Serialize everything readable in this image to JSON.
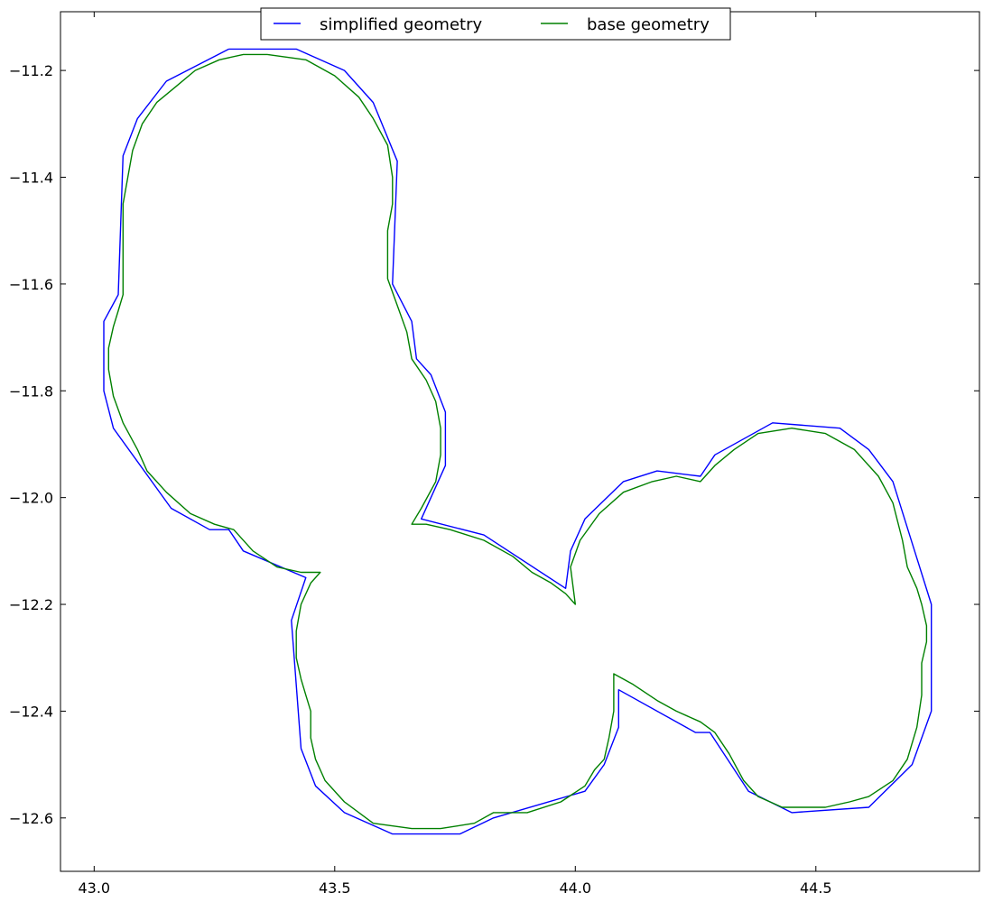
{
  "chart_data": {
    "type": "line",
    "title": "",
    "xlabel": "",
    "ylabel": "",
    "xlim": [
      42.93,
      44.84
    ],
    "ylim": [
      -12.7,
      -11.09
    ],
    "xticks": [
      43.0,
      43.5,
      44.0,
      44.5
    ],
    "xtick_labels": [
      "43.0",
      "43.5",
      "44.0",
      "44.5"
    ],
    "yticks": [
      -11.2,
      -11.4,
      -11.6,
      -11.8,
      -12.0,
      -12.2,
      -12.4,
      -12.6
    ],
    "ytick_labels": [
      "−11.2",
      "−11.4",
      "−11.6",
      "−11.8",
      "−12.0",
      "−12.2",
      "−12.4",
      "−12.6"
    ],
    "grid": false,
    "legend": {
      "placement": "top-center",
      "columns": 2
    },
    "series": [
      {
        "name": "simplified geometry",
        "color": "#0000ff",
        "points": [
          [
            43.28,
            -11.16
          ],
          [
            43.42,
            -11.16
          ],
          [
            43.52,
            -11.2
          ],
          [
            43.58,
            -11.26
          ],
          [
            43.63,
            -11.37
          ],
          [
            43.62,
            -11.6
          ],
          [
            43.66,
            -11.67
          ],
          [
            43.67,
            -11.74
          ],
          [
            43.7,
            -11.77
          ],
          [
            43.73,
            -11.84
          ],
          [
            43.73,
            -11.94
          ],
          [
            43.68,
            -12.04
          ],
          [
            43.81,
            -12.07
          ],
          [
            43.98,
            -12.17
          ],
          [
            43.99,
            -12.1
          ],
          [
            44.02,
            -12.04
          ],
          [
            44.1,
            -11.97
          ],
          [
            44.17,
            -11.95
          ],
          [
            44.26,
            -11.96
          ],
          [
            44.29,
            -11.92
          ],
          [
            44.41,
            -11.86
          ],
          [
            44.55,
            -11.87
          ],
          [
            44.61,
            -11.91
          ],
          [
            44.66,
            -11.97
          ],
          [
            44.74,
            -12.2
          ],
          [
            44.74,
            -12.4
          ],
          [
            44.7,
            -12.5
          ],
          [
            44.61,
            -12.58
          ],
          [
            44.45,
            -12.59
          ],
          [
            44.36,
            -12.55
          ],
          [
            44.28,
            -12.44
          ],
          [
            44.25,
            -12.44
          ],
          [
            44.09,
            -12.36
          ],
          [
            44.09,
            -12.43
          ],
          [
            44.06,
            -12.5
          ],
          [
            44.02,
            -12.55
          ],
          [
            43.83,
            -12.6
          ],
          [
            43.76,
            -12.63
          ],
          [
            43.62,
            -12.63
          ],
          [
            43.52,
            -12.59
          ],
          [
            43.46,
            -12.54
          ],
          [
            43.43,
            -12.47
          ],
          [
            43.41,
            -12.23
          ],
          [
            43.44,
            -12.15
          ],
          [
            43.31,
            -12.1
          ],
          [
            43.28,
            -12.06
          ],
          [
            43.24,
            -12.06
          ],
          [
            43.16,
            -12.02
          ],
          [
            43.04,
            -11.87
          ],
          [
            43.02,
            -11.8
          ],
          [
            43.02,
            -11.67
          ],
          [
            43.05,
            -11.62
          ],
          [
            43.06,
            -11.36
          ],
          [
            43.09,
            -11.29
          ],
          [
            43.15,
            -11.22
          ],
          [
            43.28,
            -11.16
          ]
        ]
      },
      {
        "name": "base geometry",
        "color": "#008000",
        "points": [
          [
            43.36,
            -11.17
          ],
          [
            43.44,
            -11.18
          ],
          [
            43.5,
            -11.21
          ],
          [
            43.55,
            -11.25
          ],
          [
            43.58,
            -11.29
          ],
          [
            43.61,
            -11.34
          ],
          [
            43.62,
            -11.4
          ],
          [
            43.62,
            -11.45
          ],
          [
            43.61,
            -11.5
          ],
          [
            43.61,
            -11.59
          ],
          [
            43.63,
            -11.64
          ],
          [
            43.65,
            -11.69
          ],
          [
            43.66,
            -11.74
          ],
          [
            43.69,
            -11.78
          ],
          [
            43.71,
            -11.82
          ],
          [
            43.72,
            -11.87
          ],
          [
            43.72,
            -11.92
          ],
          [
            43.71,
            -11.97
          ],
          [
            43.68,
            -12.02
          ],
          [
            43.66,
            -12.05
          ],
          [
            43.69,
            -12.05
          ],
          [
            43.74,
            -12.06
          ],
          [
            43.81,
            -12.08
          ],
          [
            43.87,
            -12.11
          ],
          [
            43.91,
            -12.14
          ],
          [
            43.95,
            -12.16
          ],
          [
            43.98,
            -12.18
          ],
          [
            44.0,
            -12.2
          ],
          [
            43.99,
            -12.13
          ],
          [
            44.01,
            -12.08
          ],
          [
            44.05,
            -12.03
          ],
          [
            44.1,
            -11.99
          ],
          [
            44.16,
            -11.97
          ],
          [
            44.21,
            -11.96
          ],
          [
            44.26,
            -11.97
          ],
          [
            44.29,
            -11.94
          ],
          [
            44.33,
            -11.91
          ],
          [
            44.38,
            -11.88
          ],
          [
            44.45,
            -11.87
          ],
          [
            44.52,
            -11.88
          ],
          [
            44.58,
            -11.91
          ],
          [
            44.63,
            -11.96
          ],
          [
            44.66,
            -12.01
          ],
          [
            44.68,
            -12.08
          ],
          [
            44.69,
            -12.13
          ],
          [
            44.71,
            -12.17
          ],
          [
            44.72,
            -12.2
          ],
          [
            44.73,
            -12.24
          ],
          [
            44.73,
            -12.27
          ],
          [
            44.72,
            -12.31
          ],
          [
            44.72,
            -12.37
          ],
          [
            44.71,
            -12.43
          ],
          [
            44.69,
            -12.49
          ],
          [
            44.66,
            -12.53
          ],
          [
            44.61,
            -12.56
          ],
          [
            44.57,
            -12.57
          ],
          [
            44.52,
            -12.58
          ],
          [
            44.48,
            -12.58
          ],
          [
            44.43,
            -12.58
          ],
          [
            44.38,
            -12.56
          ],
          [
            44.35,
            -12.53
          ],
          [
            44.32,
            -12.48
          ],
          [
            44.29,
            -12.44
          ],
          [
            44.26,
            -12.42
          ],
          [
            44.21,
            -12.4
          ],
          [
            44.17,
            -12.38
          ],
          [
            44.12,
            -12.35
          ],
          [
            44.1,
            -12.34
          ],
          [
            44.08,
            -12.33
          ],
          [
            44.08,
            -12.4
          ],
          [
            44.07,
            -12.45
          ],
          [
            44.06,
            -12.49
          ],
          [
            44.04,
            -12.51
          ],
          [
            44.02,
            -12.54
          ],
          [
            43.97,
            -12.57
          ],
          [
            43.9,
            -12.59
          ],
          [
            43.84,
            -12.59
          ],
          [
            43.83,
            -12.59
          ],
          [
            43.79,
            -12.61
          ],
          [
            43.72,
            -12.62
          ],
          [
            43.66,
            -12.62
          ],
          [
            43.58,
            -12.61
          ],
          [
            43.52,
            -12.57
          ],
          [
            43.48,
            -12.53
          ],
          [
            43.46,
            -12.49
          ],
          [
            43.45,
            -12.45
          ],
          [
            43.45,
            -12.4
          ],
          [
            43.44,
            -12.37
          ],
          [
            43.43,
            -12.34
          ],
          [
            43.42,
            -12.3
          ],
          [
            43.42,
            -12.25
          ],
          [
            43.43,
            -12.2
          ],
          [
            43.45,
            -12.16
          ],
          [
            43.47,
            -12.14
          ],
          [
            43.43,
            -12.14
          ],
          [
            43.38,
            -12.13
          ],
          [
            43.33,
            -12.1
          ],
          [
            43.29,
            -12.06
          ],
          [
            43.25,
            -12.05
          ],
          [
            43.2,
            -12.03
          ],
          [
            43.15,
            -11.99
          ],
          [
            43.11,
            -11.95
          ],
          [
            43.09,
            -11.91
          ],
          [
            43.06,
            -11.86
          ],
          [
            43.04,
            -11.81
          ],
          [
            43.03,
            -11.76
          ],
          [
            43.03,
            -11.72
          ],
          [
            43.04,
            -11.68
          ],
          [
            43.05,
            -11.65
          ],
          [
            43.06,
            -11.62
          ],
          [
            43.06,
            -11.56
          ],
          [
            43.06,
            -11.5
          ],
          [
            43.06,
            -11.45
          ],
          [
            43.07,
            -11.4
          ],
          [
            43.08,
            -11.35
          ],
          [
            43.1,
            -11.3
          ],
          [
            43.13,
            -11.26
          ],
          [
            43.17,
            -11.23
          ],
          [
            43.21,
            -11.2
          ],
          [
            43.26,
            -11.18
          ],
          [
            43.31,
            -11.17
          ],
          [
            43.36,
            -11.17
          ]
        ]
      }
    ]
  }
}
